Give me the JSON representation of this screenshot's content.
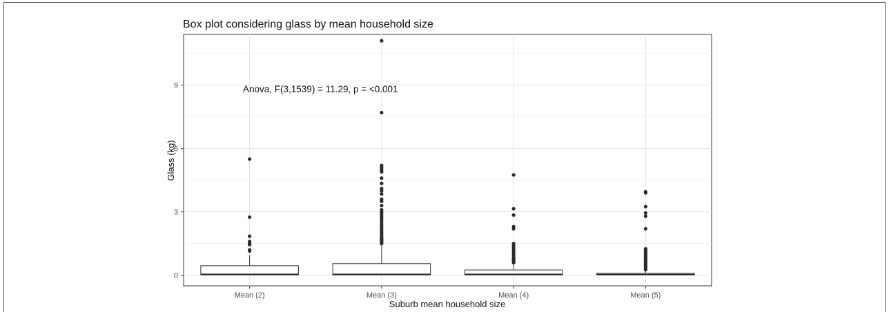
{
  "chart_data": {
    "type": "box",
    "title": "Box plot considering glass by mean household size",
    "xlabel": "Suburb mean household size",
    "ylabel": "Glass (kg)",
    "categories": [
      "Mean (2)",
      "Mean (3)",
      "Mean (4)",
      "Mean (5)"
    ],
    "yticks": [
      "0",
      "3",
      "6",
      "9"
    ],
    "ylim": [
      -0.5,
      11.4
    ],
    "grid": true,
    "annotation": "Anova, F(3,1539) = 11.29, p = <0.001",
    "boxes": [
      {
        "category": "Mean (2)",
        "min": 0,
        "q1": 0.02,
        "median": 0.05,
        "q3": 0.45,
        "max": 0.95,
        "outliers": [
          5.5,
          2.75,
          1.85,
          1.6,
          1.5,
          1.45,
          1.2,
          1.15
        ]
      },
      {
        "category": "Mean (3)",
        "min": 0,
        "q1": 0.02,
        "median": 0.05,
        "q3": 0.55,
        "max": 1.45,
        "outliers": [
          11.1,
          7.7,
          5.2,
          5.1,
          5.0,
          4.9,
          4.6,
          4.35,
          4.1,
          4.0,
          3.85,
          3.6,
          3.5,
          3.3,
          3.1,
          3.0,
          2.9,
          2.8,
          2.7,
          2.6,
          2.5,
          2.4,
          2.3,
          2.2,
          2.1,
          2.0,
          1.9,
          1.8,
          1.75,
          1.7,
          1.65,
          1.6,
          1.55,
          1.5
        ]
      },
      {
        "category": "Mean (4)",
        "min": 0,
        "q1": 0.02,
        "median": 0.05,
        "q3": 0.25,
        "max": 0.55,
        "outliers": [
          4.75,
          3.15,
          2.85,
          2.3,
          2.2,
          1.5,
          1.4,
          1.3,
          1.2,
          1.1,
          1.0,
          0.95,
          0.85,
          0.8,
          0.75,
          0.7,
          0.65,
          0.6
        ]
      },
      {
        "category": "Mean (5)",
        "min": 0,
        "q1": 0.02,
        "median": 0.04,
        "q3": 0.1,
        "max": 0.22,
        "outliers": [
          3.95,
          3.9,
          3.25,
          2.95,
          2.8,
          2.2,
          1.25,
          1.2,
          1.15,
          1.1,
          1.05,
          1.0,
          0.95,
          0.9,
          0.85,
          0.8,
          0.75,
          0.7,
          0.65,
          0.6,
          0.55,
          0.5,
          0.45,
          0.4,
          0.35,
          0.3,
          0.27
        ]
      }
    ]
  }
}
